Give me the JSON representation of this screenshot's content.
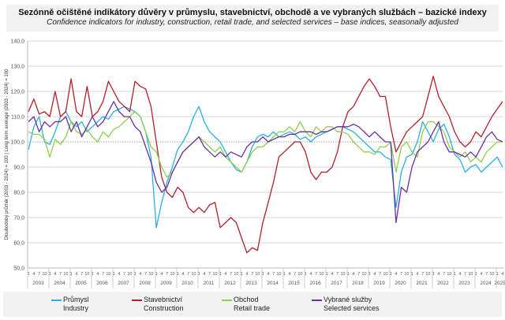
{
  "title": "Sezónně očištěné indikátory důvěry v průmyslu, stavebnictví, obchodě a ve vybraných službách – bazické indexy",
  "subtitle": "Confidence indicators for industry, construction, retail trade, and selected services – base indices, seasonally adjusted",
  "chart_data": {
    "type": "line",
    "ylabel": "Dlouhodobý průměr (2003 - 2024) = 100 | Long term average (2003 - 2024) = 100",
    "ylim": [
      50,
      140
    ],
    "yticks": [
      "50,0",
      "60,0",
      "70,0",
      "80,0",
      "90,0",
      "100,0",
      "110,0",
      "120,0",
      "130,0",
      "140,0"
    ],
    "reference_line": 100,
    "grid": true,
    "x_start": "2003-01",
    "x_end": "2025-04",
    "x_step_months": 3,
    "month_ticks": [
      "1",
      "4",
      "7",
      "10"
    ],
    "years": [
      "2003",
      "2004",
      "2005",
      "2006",
      "2007",
      "2008",
      "2009",
      "2010",
      "2011",
      "2012",
      "2013",
      "2014",
      "2015",
      "2016",
      "2017",
      "2018",
      "2019",
      "2020",
      "2021",
      "2022",
      "2023",
      "2024",
      "2025"
    ],
    "legend_position": "bottom",
    "series": [
      {
        "name": "Průmysl",
        "name_en": "Industry",
        "color": "#29b0e3",
        "values": [
          97,
          106,
          110,
          100,
          99,
          104,
          110,
          112,
          108,
          106,
          108,
          104,
          106,
          108,
          110,
          109,
          112,
          113,
          114,
          113,
          112,
          110,
          104,
          94,
          66,
          76,
          84,
          90,
          97,
          100,
          104,
          110,
          114,
          108,
          104,
          102,
          100,
          96,
          92,
          89,
          88,
          92,
          98,
          102,
          103,
          102,
          104,
          102,
          103,
          104,
          103,
          101,
          102,
          100,
          102,
          103,
          104,
          105,
          106,
          106,
          105,
          104,
          102,
          100,
          98,
          96,
          96,
          94,
          93,
          74,
          88,
          94,
          95,
          100,
          108,
          104,
          100,
          105,
          107,
          102,
          95,
          93,
          88,
          90,
          91,
          88,
          90,
          92,
          94,
          90
        ]
      },
      {
        "name": "Stavebnictví",
        "name_en": "Construction",
        "color": "#b3202a",
        "values": [
          112,
          117,
          111,
          112,
          110,
          120,
          110,
          112,
          125,
          112,
          110,
          122,
          110,
          112,
          116,
          124,
          120,
          116,
          114,
          112,
          124,
          122,
          121,
          114,
          100,
          86,
          80,
          78,
          82,
          80,
          74,
          72,
          74,
          72,
          75,
          76,
          66,
          68,
          70,
          68,
          62,
          56,
          58,
          57,
          68,
          76,
          84,
          94,
          96,
          98,
          100,
          100,
          96,
          88,
          85,
          88,
          88,
          90,
          96,
          106,
          112,
          114,
          118,
          122,
          125,
          122,
          118,
          118,
          106,
          96,
          100,
          104,
          106,
          108,
          110,
          118,
          126,
          118,
          114,
          110,
          104,
          100,
          98,
          100,
          104,
          102,
          106,
          110,
          113,
          116
        ]
      },
      {
        "name": "Obchod",
        "name_en": "Retail trade",
        "color": "#8fcf50",
        "values": [
          104,
          103,
          103,
          101,
          94,
          101,
          99,
          102,
          108,
          104,
          103,
          105,
          102,
          100,
          104,
          102,
          105,
          106,
          108,
          110,
          112,
          110,
          104,
          98,
          96,
          90,
          86,
          88,
          92,
          96,
          98,
          100,
          102,
          100,
          98,
          96,
          98,
          94,
          92,
          90,
          88,
          92,
          96,
          98,
          98,
          100,
          102,
          104,
          104,
          106,
          104,
          108,
          104,
          102,
          106,
          104,
          106,
          106,
          104,
          104,
          103,
          100,
          98,
          96,
          96,
          95,
          98,
          98,
          100,
          88,
          98,
          100,
          96,
          94,
          104,
          108,
          108,
          106,
          104,
          98,
          96,
          94,
          96,
          92,
          94,
          92,
          96,
          98,
          100,
          100
        ]
      },
      {
        "name": "Vybrané služby",
        "name_en": "Selected services",
        "color": "#6b2fa0",
        "values": [
          108,
          110,
          104,
          108,
          106,
          108,
          108,
          110,
          104,
          108,
          102,
          106,
          110,
          106,
          108,
          112,
          116,
          112,
          110,
          110,
          106,
          104,
          98,
          92,
          84,
          80,
          82,
          88,
          92,
          96,
          98,
          100,
          102,
          98,
          96,
          94,
          96,
          94,
          96,
          95,
          94,
          98,
          100,
          100,
          102,
          100,
          101,
          102,
          102,
          103,
          103,
          104,
          104,
          104,
          103,
          104,
          104,
          105,
          106,
          106,
          106,
          107,
          106,
          104,
          102,
          104,
          102,
          100,
          100,
          68,
          82,
          80,
          90,
          96,
          98,
          100,
          104,
          108,
          100,
          96,
          96,
          95,
          94,
          96,
          94,
          98,
          102,
          104,
          101,
          100
        ]
      }
    ]
  }
}
